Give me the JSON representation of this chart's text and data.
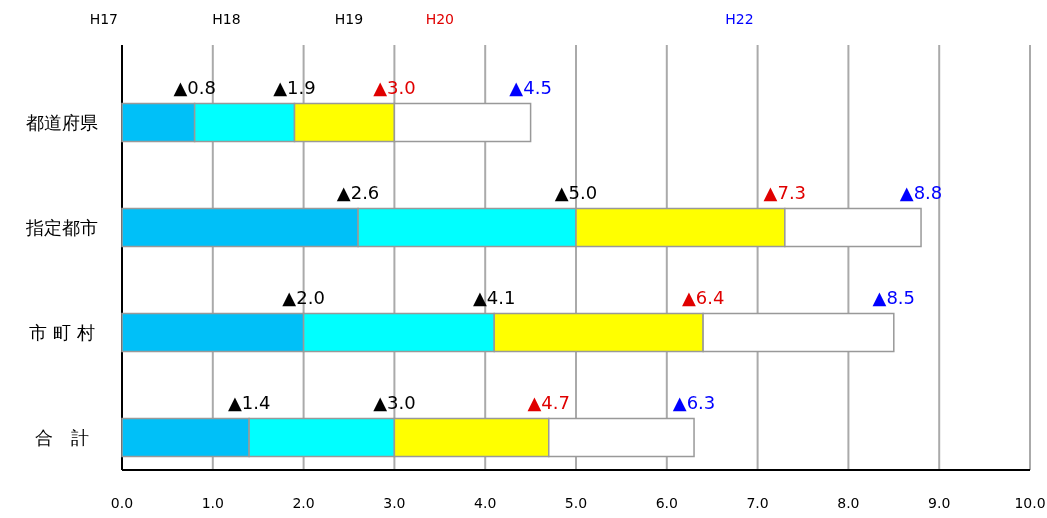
{
  "chart_data": {
    "type": "bar",
    "orientation": "horizontal",
    "stacked": true,
    "categories": [
      "都道府県",
      "指定都市",
      "市 町 村",
      "合　計"
    ],
    "series": [
      {
        "color": "#00c0f8",
        "values": [
          0.8,
          2.6,
          2.0,
          1.4
        ]
      },
      {
        "color": "#00ffff",
        "values": [
          1.1,
          2.4,
          2.1,
          1.6
        ]
      },
      {
        "color": "#ffff00",
        "values": [
          1.1,
          2.3,
          2.3,
          1.7
        ]
      },
      {
        "color": "#ffffff",
        "values": [
          1.5,
          1.5,
          2.1,
          1.6
        ]
      }
    ],
    "annotations": [
      "H17",
      "H18",
      "H19",
      "H20",
      "H22",
      {
        "text": "▲0.8",
        "x": 0.8,
        "y": "都道府県"
      },
      {
        "text": "▲2.6",
        "x": 2.6,
        "y": "指定都市"
      },
      {
        "text": "▲2.0",
        "x": 2.0,
        "y": "市 町 村"
      },
      {
        "text": "▲1.4",
        "x": 1.4,
        "y": "合　計"
      },
      {
        "text": "▲1.9",
        "x": 1.9,
        "y": "都道府県"
      },
      {
        "text": "▲5.0",
        "x": 5.0,
        "y": "指定都市"
      },
      {
        "text": "▲4.1",
        "x": 4.1,
        "y": "市 町 村"
      },
      {
        "text": "▲3.0",
        "x": 3.0,
        "y": "合　計"
      },
      {
        "text": "▲3.0",
        "x": 3.0,
        "y": "都道府県"
      },
      {
        "text": "▲7.3",
        "x": 7.3,
        "y": "指定都市"
      },
      {
        "text": "▲6.4",
        "x": 6.4,
        "y": "市 町 村"
      },
      {
        "text": "▲4.7",
        "x": 4.7,
        "y": "合　計"
      },
      {
        "text": "▲4.5",
        "x": 4.5,
        "y": "都道府県"
      },
      {
        "text": "▲8.8",
        "x": 8.8,
        "y": "指定都市"
      },
      {
        "text": "▲8.5",
        "x": 8.5,
        "y": "市 町 村"
      },
      {
        "text": "▲6.3",
        "x": 6.3,
        "y": "合　計"
      }
    ],
    "xlim": [
      0,
      10
    ],
    "xticks": [
      {
        "value": 0,
        "label": "0.0"
      },
      {
        "value": 1,
        "label": "1.0"
      },
      {
        "value": 2,
        "label": "2.0"
      },
      {
        "value": 3,
        "label": "3.0"
      },
      {
        "value": 4,
        "label": "4.0"
      },
      {
        "value": 5,
        "label": "5.0"
      },
      {
        "value": 6,
        "label": "6.0"
      },
      {
        "value": 7,
        "label": "7.0"
      },
      {
        "value": 8,
        "label": "8.0"
      },
      {
        "value": 9,
        "label": "9.0"
      },
      {
        "value": 10,
        "label": "10.0"
      }
    ],
    "grid": "x"
  }
}
